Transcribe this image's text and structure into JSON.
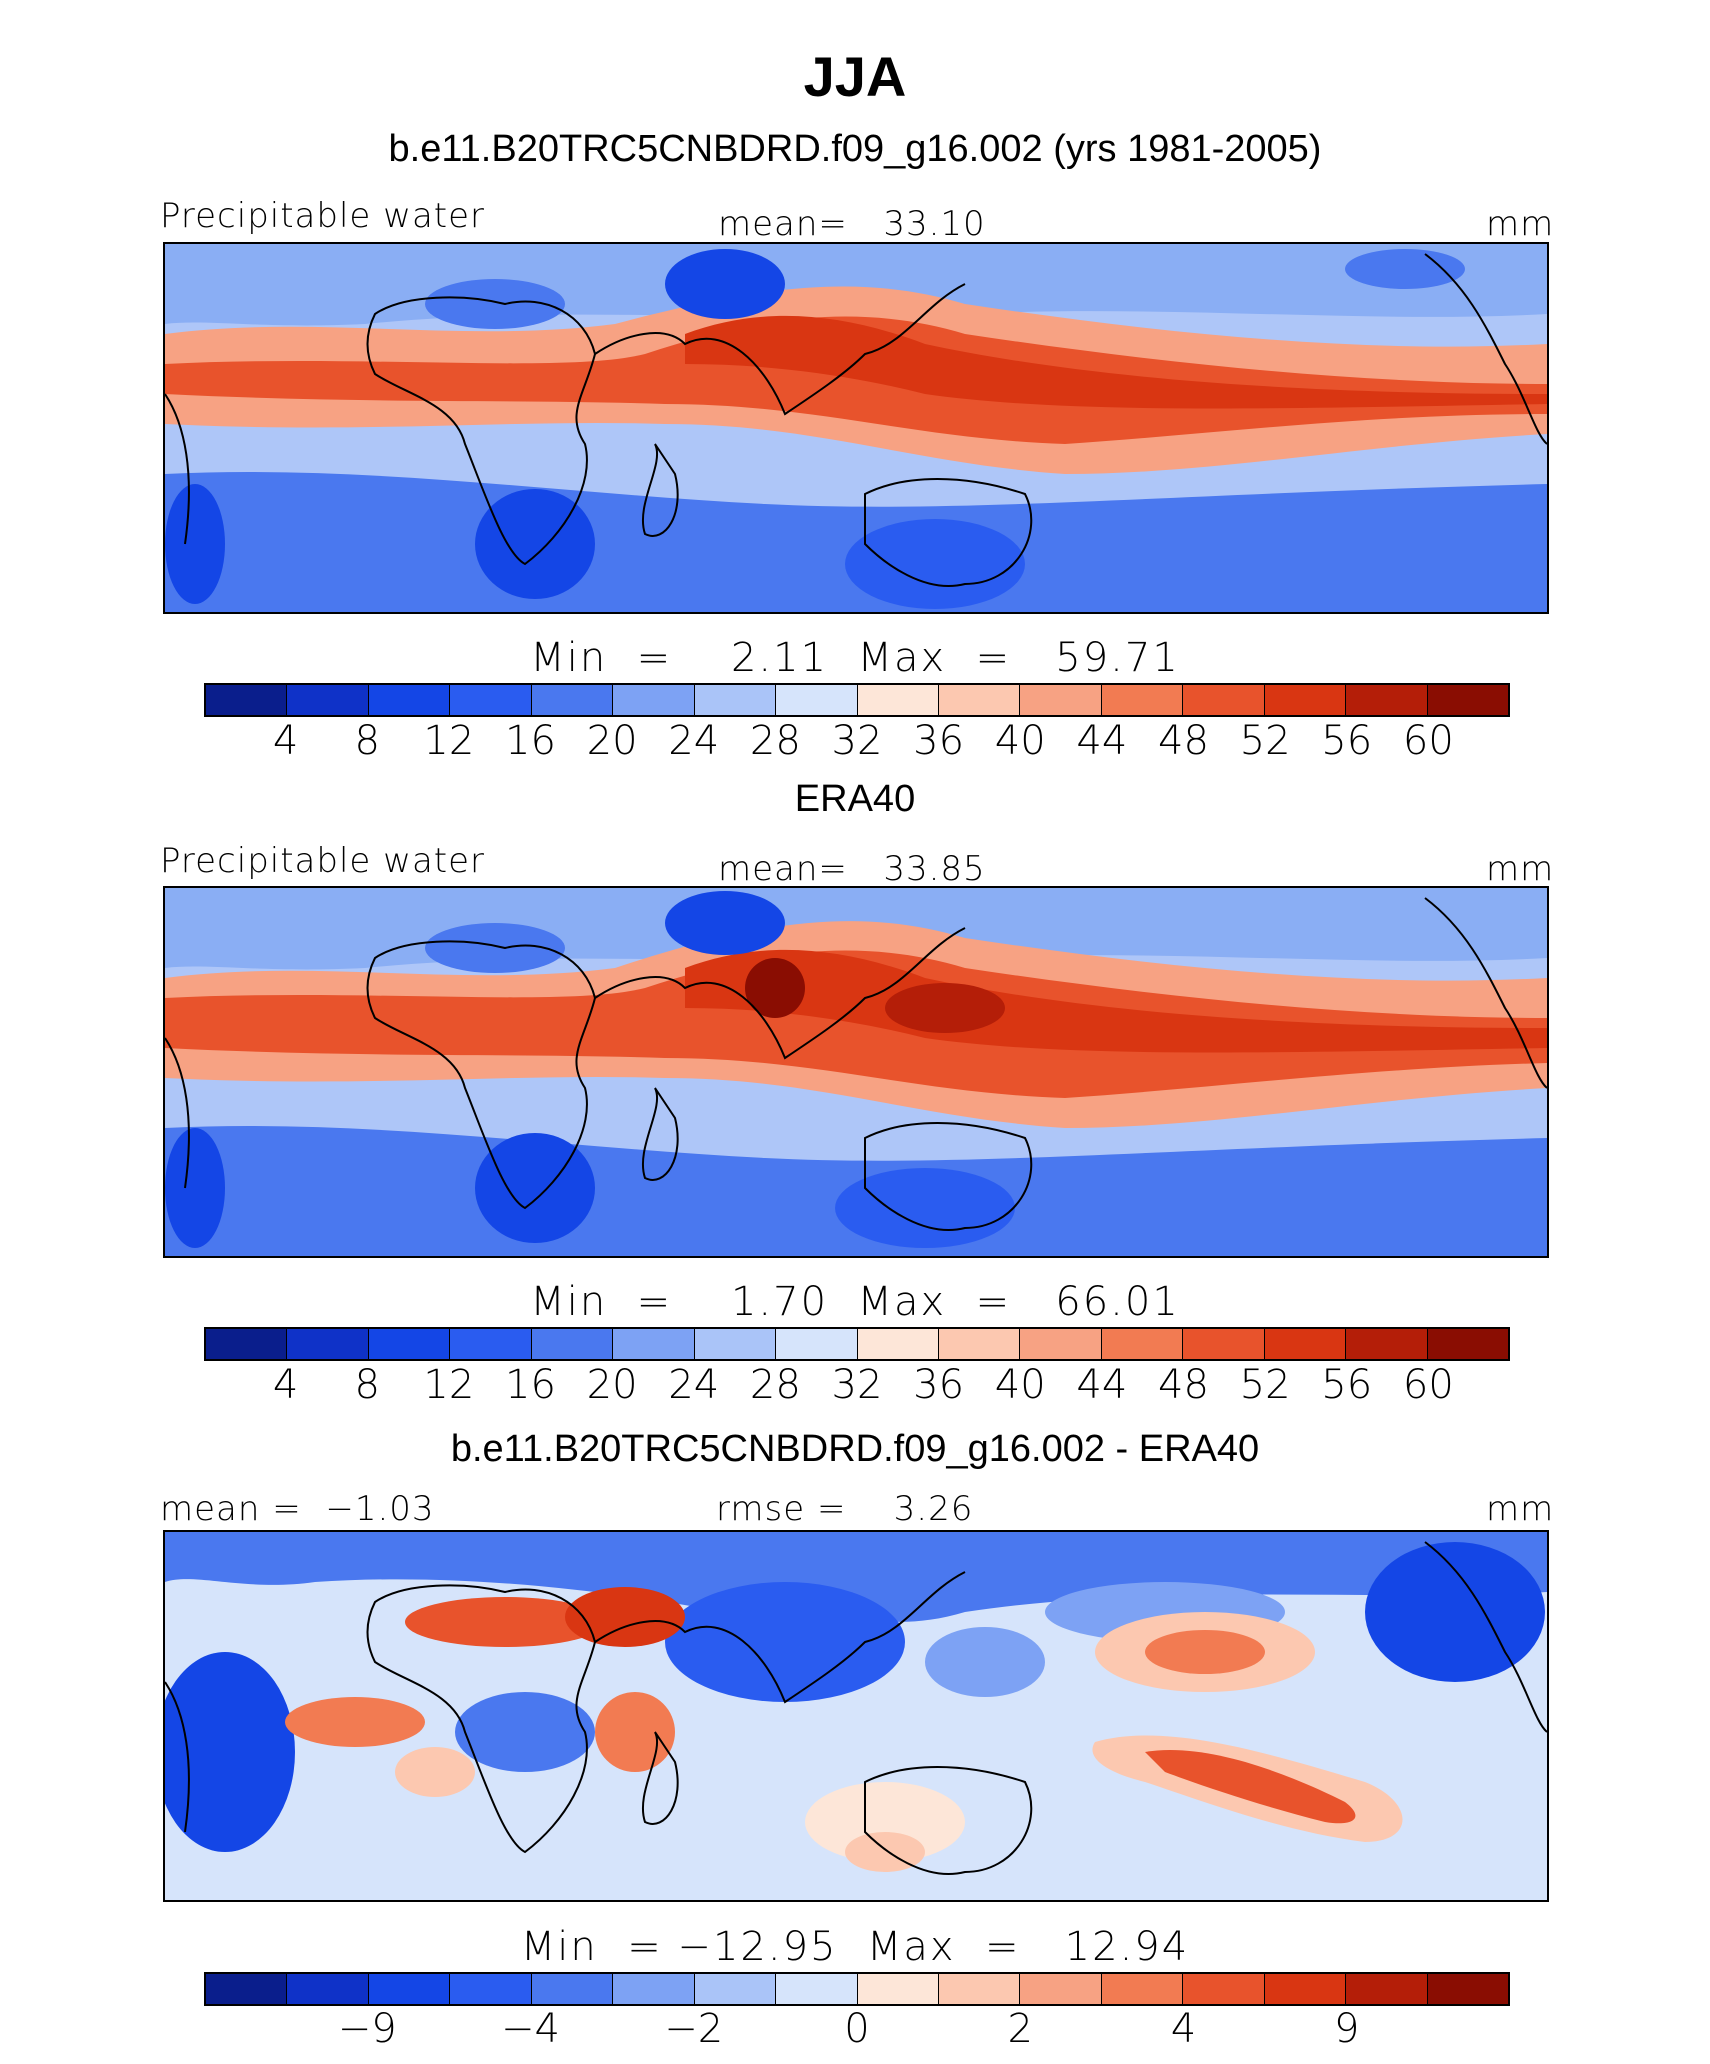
{
  "title": "JJA",
  "colorbar_colors": [
    "#0a1e8c",
    "#0f32c8",
    "#1446e6",
    "#2a5cf0",
    "#4a78ef",
    "#7da2f4",
    "#aac4f8",
    "#d6e4fb",
    "#fde6d8",
    "#fcc8b0",
    "#f7a283",
    "#f27b52",
    "#e8532c",
    "#d93612",
    "#b41e08",
    "#8a0d02"
  ],
  "panels": [
    {
      "title": "b.e11.B20TRC5CNBDRD.f09_g16.002 (yrs 1981-2005)",
      "left_label": "Precipitable water",
      "center_label": "mean=   33.10",
      "right_label": "mm",
      "min_max": "Min  =    2.11  Max  =   59.71",
      "ticks": [
        "4",
        "8",
        "12",
        "16",
        "20",
        "24",
        "28",
        "32",
        "36",
        "40",
        "44",
        "48",
        "52",
        "56",
        "60"
      ]
    },
    {
      "title": "ERA40",
      "left_label": "Precipitable water",
      "center_label": "mean=   33.85",
      "right_label": "mm",
      "min_max": "Min  =    1.70  Max  =   66.01",
      "ticks": [
        "4",
        "8",
        "12",
        "16",
        "20",
        "24",
        "28",
        "32",
        "36",
        "40",
        "44",
        "48",
        "52",
        "56",
        "60"
      ]
    },
    {
      "title": "b.e11.B20TRC5CNBDRD.f09_g16.002 - ERA40",
      "left_label": "mean =  −1.03",
      "center_label": "rmse =    3.26",
      "right_label": "mm",
      "min_max": "Min  = −12.95  Max  =   12.94",
      "ticks": [
        "−9",
        "−4",
        "−2",
        "0",
        "2",
        "4",
        "9"
      ]
    }
  ]
}
